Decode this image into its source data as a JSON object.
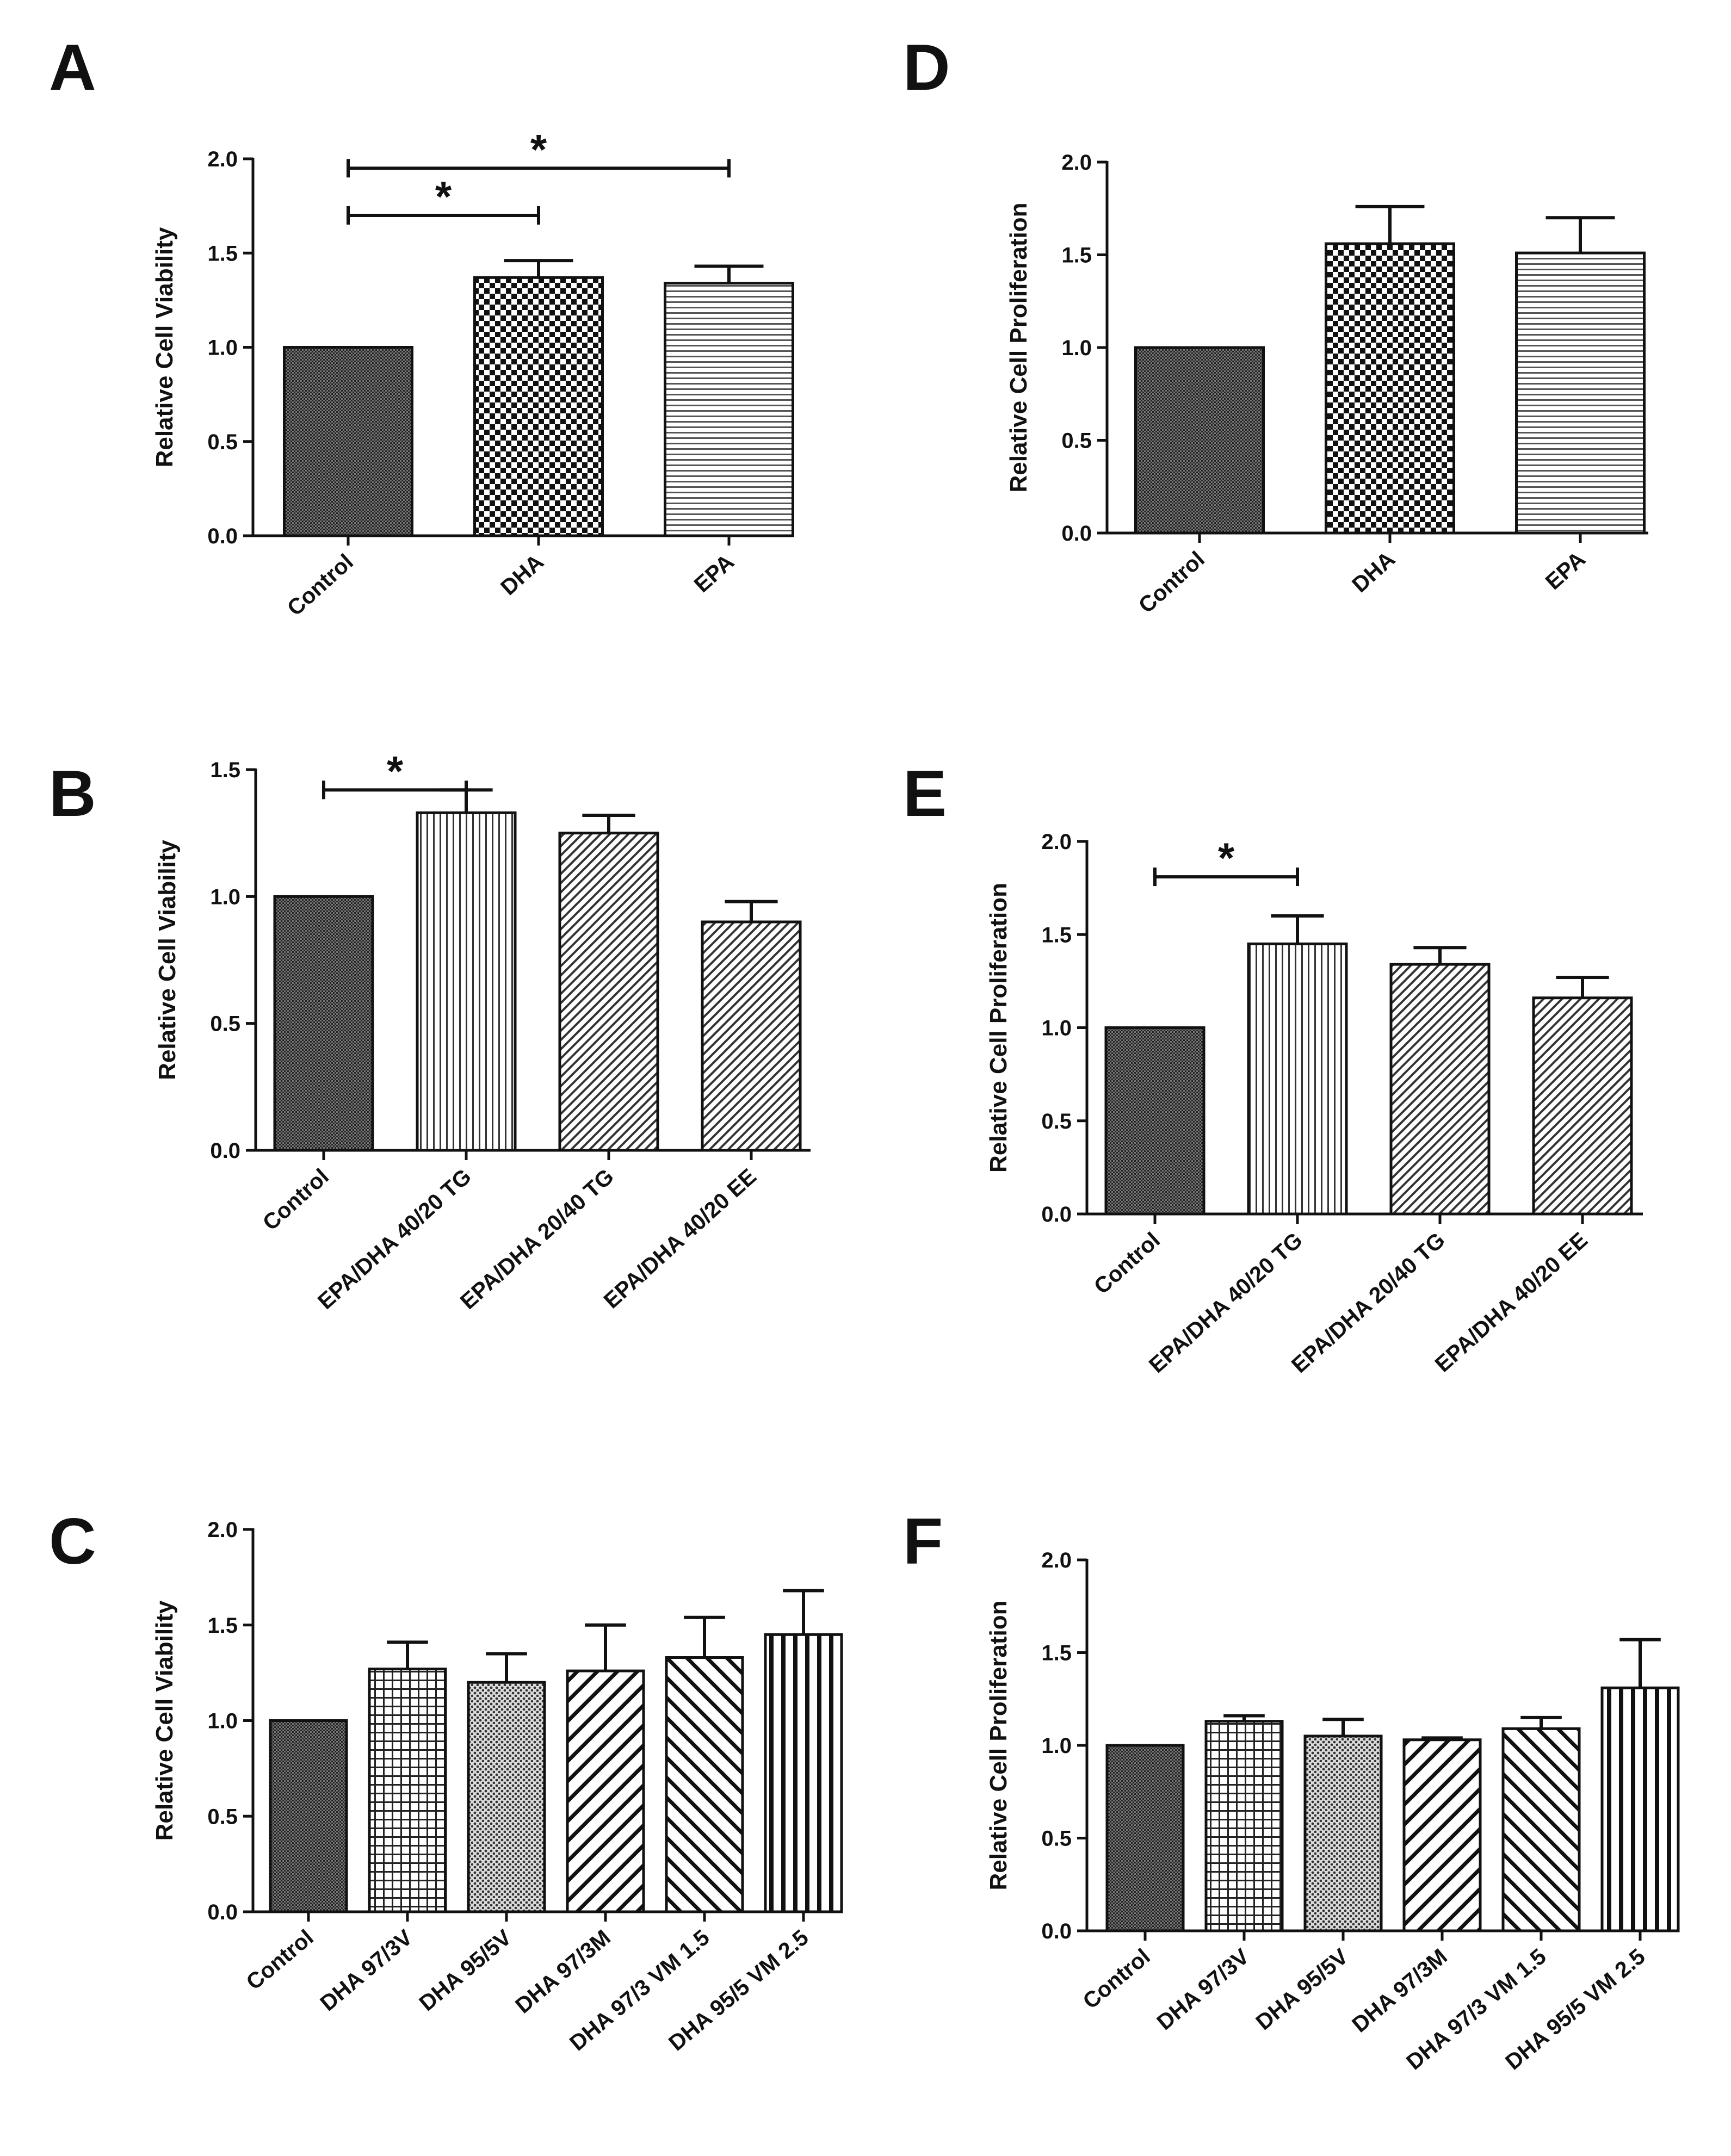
{
  "chart_data": [
    {
      "panel": "A",
      "type": "bar",
      "ylabel": "Relative Cell Viability",
      "ylim": [
        0,
        2.0
      ],
      "yticks": [
        "0.0",
        "0.5",
        "1.0",
        "1.5",
        "2.0"
      ],
      "categories": [
        "Control",
        "DHA",
        "EPA"
      ],
      "values": [
        1.0,
        1.37,
        1.34
      ],
      "errors": [
        0,
        0.09,
        0.09
      ],
      "patterns": [
        "dense",
        "checker",
        "hlines"
      ],
      "significance": [
        {
          "from": 0,
          "to": 1,
          "label": "*",
          "level": 1.7
        },
        {
          "from": 0,
          "to": 2,
          "label": "*",
          "level": 1.95
        }
      ]
    },
    {
      "panel": "D",
      "type": "bar",
      "ylabel": "Relative Cell Proliferation",
      "ylim": [
        0,
        2.0
      ],
      "yticks": [
        "0.0",
        "0.5",
        "1.0",
        "1.5",
        "2.0"
      ],
      "categories": [
        "Control",
        "DHA",
        "EPA"
      ],
      "values": [
        1.0,
        1.56,
        1.51
      ],
      "errors": [
        0,
        0.2,
        0.19
      ],
      "patterns": [
        "dense",
        "checker",
        "hlines"
      ],
      "significance": []
    },
    {
      "panel": "B",
      "type": "bar",
      "ylabel": "Relative Cell Viability",
      "ylim": [
        0,
        1.5
      ],
      "yticks": [
        "0.0",
        "0.5",
        "1.0",
        "1.5"
      ],
      "categories": [
        "Control",
        "EPA/DHA 40/20 TG",
        "EPA/DHA 20/40 TG",
        "EPA/DHA 40/20 EE"
      ],
      "values": [
        1.0,
        1.33,
        1.25,
        0.9
      ],
      "errors": [
        0,
        0.09,
        0.07,
        0.08
      ],
      "patterns": [
        "dense",
        "vlines",
        "diag-back",
        "diag-back"
      ],
      "significance": [
        {
          "from": 0,
          "to": 1,
          "label": "*",
          "level": 1.42
        }
      ]
    },
    {
      "panel": "E",
      "type": "bar",
      "ylabel": "Relative Cell Proliferation",
      "ylim": [
        0,
        2.0
      ],
      "yticks": [
        "0.0",
        "0.5",
        "1.0",
        "1.5",
        "2.0"
      ],
      "categories": [
        "Control",
        "EPA/DHA 40/20 TG",
        "EPA/DHA 20/40 TG",
        "EPA/DHA 40/20 EE"
      ],
      "values": [
        1.0,
        1.45,
        1.34,
        1.16
      ],
      "errors": [
        0,
        0.15,
        0.09,
        0.11
      ],
      "patterns": [
        "dense",
        "vlines",
        "diag-back",
        "diag-back"
      ],
      "significance": [
        {
          "from": 0,
          "to": 1,
          "label": "*",
          "level": 1.81
        }
      ]
    },
    {
      "panel": "C",
      "type": "bar",
      "ylabel": "Relative Cell Viability",
      "ylim": [
        0,
        2.0
      ],
      "yticks": [
        "0.0",
        "0.5",
        "1.0",
        "1.5",
        "2.0"
      ],
      "categories": [
        "Control",
        "DHA 97/3V",
        "DHA 95/5V",
        "DHA 97/3M",
        "DHA 97/3 VM 1.5",
        "DHA 95/5 VM 2.5"
      ],
      "values": [
        1.0,
        1.27,
        1.2,
        1.26,
        1.33,
        1.45
      ],
      "errors": [
        0,
        0.14,
        0.15,
        0.24,
        0.21,
        0.23
      ],
      "patterns": [
        "dense",
        "grid",
        "dots",
        "diag-back-wide",
        "diag-fwd-wide",
        "vlines-wide"
      ],
      "significance": []
    },
    {
      "panel": "F",
      "type": "bar",
      "ylabel": "Relative Cell Proliferation",
      "ylim": [
        0,
        2.0
      ],
      "yticks": [
        "0.0",
        "0.5",
        "1.0",
        "1.5",
        "2.0"
      ],
      "categories": [
        "Control",
        "DHA 97/3V",
        "DHA 95/5V",
        "DHA 97/3M",
        "DHA 97/3 VM 1.5",
        "DHA 95/5 VM 2.5"
      ],
      "values": [
        1.0,
        1.13,
        1.05,
        1.03,
        1.09,
        1.31
      ],
      "errors": [
        0,
        0.03,
        0.09,
        0.01,
        0.06,
        0.26
      ],
      "patterns": [
        "dense",
        "grid",
        "dots",
        "diag-back-wide",
        "diag-fwd-wide",
        "vlines-wide"
      ],
      "significance": []
    }
  ]
}
